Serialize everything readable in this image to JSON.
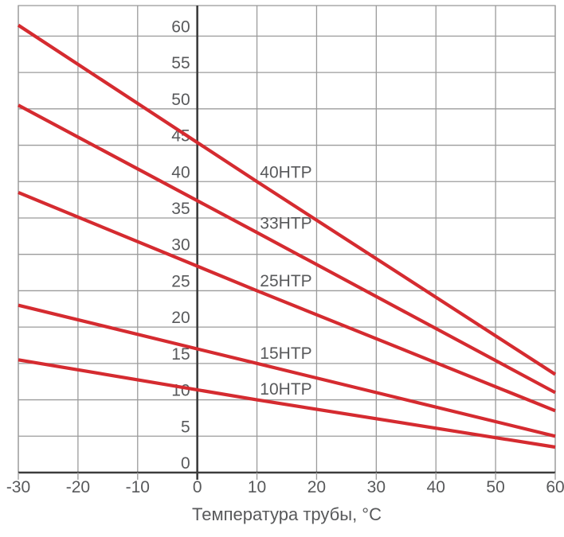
{
  "chart_data": {
    "type": "line",
    "title": "",
    "xlabel": "Температура трубы, °C",
    "ylabel": "",
    "xlim": [
      -30,
      60
    ],
    "ylim": [
      0,
      64.2
    ],
    "x_ticks": [
      -30,
      -20,
      -10,
      0,
      10,
      20,
      30,
      40,
      50,
      60
    ],
    "y_ticks": [
      0,
      5,
      10,
      15,
      20,
      25,
      30,
      35,
      40,
      45,
      50,
      55,
      60
    ],
    "grid": true,
    "legend_position": "inline-labels",
    "series": [
      {
        "name": "40HTP",
        "x": [
          -30,
          10,
          60
        ],
        "values": [
          61.5,
          40,
          13.5
        ],
        "label_x": 10.5
      },
      {
        "name": "33HTP",
        "x": [
          -30,
          10,
          60
        ],
        "values": [
          50.5,
          33,
          11
        ],
        "label_x": 10.5
      },
      {
        "name": "25HTP",
        "x": [
          -30,
          10,
          60
        ],
        "values": [
          38.5,
          25,
          8.5
        ],
        "label_x": 10.5
      },
      {
        "name": "15HTP",
        "x": [
          -30,
          10,
          60
        ],
        "values": [
          23,
          15,
          5
        ],
        "label_x": 10.5
      },
      {
        "name": "10HTP",
        "x": [
          -30,
          10,
          60
        ],
        "values": [
          15.5,
          10,
          3.5
        ],
        "label_x": 10.5
      }
    ],
    "colors": {
      "series_line": "#d52b30",
      "grid": "#9b9b9b",
      "axis": "#3c3c3c",
      "text": "#58595b"
    }
  }
}
